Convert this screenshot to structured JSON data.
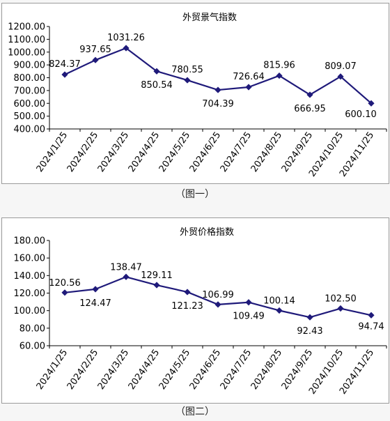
{
  "chart_data": [
    {
      "type": "line",
      "title": "外贸景气指数",
      "categories": [
        "2024/1/25",
        "2024/2/25",
        "2024/3/25",
        "2024/4/25",
        "2024/5/25",
        "2024/6/25",
        "2024/7/25",
        "2024/8/25",
        "2024/9/25",
        "2024/10/25",
        "2024/11/25"
      ],
      "values": [
        824.37,
        937.65,
        1031.26,
        850.54,
        780.55,
        704.39,
        726.64,
        815.96,
        666.95,
        809.07,
        600.1
      ],
      "data_labels": [
        "824.37",
        "937.65",
        "1031.26",
        "850.54",
        "780.55",
        "704.39",
        "726.64",
        "815.96",
        "666.95",
        "809.07",
        "600.10"
      ],
      "yticks": [
        "400.00",
        "500.00",
        "600.00",
        "700.00",
        "800.00",
        "900.00",
        "1000.00",
        "1100.00",
        "1200.00"
      ],
      "ylim": [
        400,
        1200
      ],
      "xlabel": "",
      "ylabel": "",
      "grid": false,
      "line_color": "#1f1a7a",
      "caption": "（图一）"
    },
    {
      "type": "line",
      "title": "外贸价格指数",
      "categories": [
        "2024/1/25",
        "2024/2/25",
        "2024/3/25",
        "2024/4/25",
        "2024/5/25",
        "2024/6/25",
        "2024/7/25",
        "2024/8/25",
        "2024/9/25",
        "2024/10/25",
        "2024/11/25"
      ],
      "values": [
        120.56,
        124.47,
        138.47,
        129.11,
        121.23,
        106.99,
        109.49,
        100.14,
        92.43,
        102.5,
        94.74
      ],
      "data_labels": [
        "120.56",
        "124.47",
        "138.47",
        "129.11",
        "121.23",
        "106.99",
        "109.49",
        "100.14",
        "92.43",
        "102.50",
        "94.74"
      ],
      "yticks": [
        "60.00",
        "80.00",
        "100.00",
        "120.00",
        "140.00",
        "160.00",
        "180.00"
      ],
      "ylim": [
        60,
        180
      ],
      "xlabel": "",
      "ylabel": "",
      "grid": false,
      "line_color": "#1f1a7a",
      "caption": "（图二）"
    }
  ]
}
